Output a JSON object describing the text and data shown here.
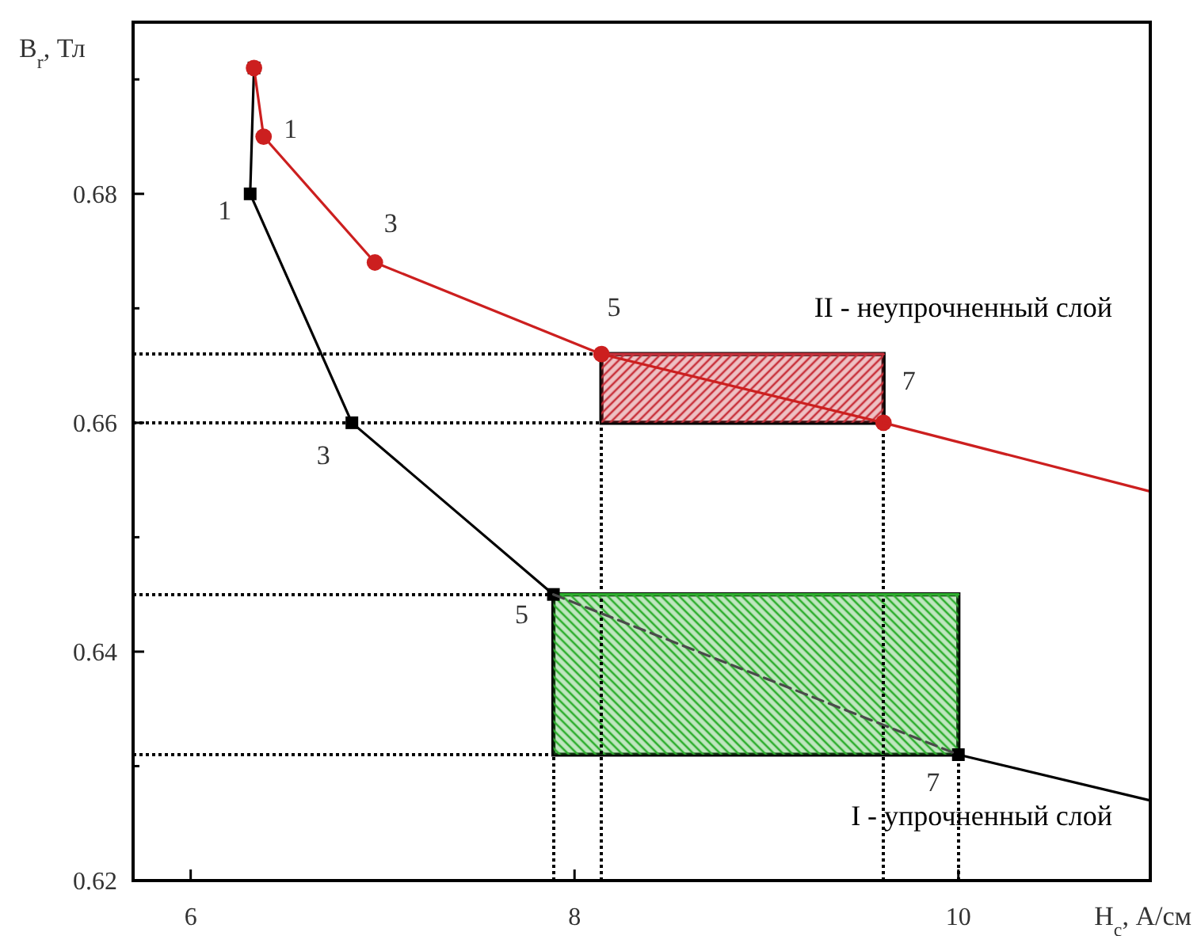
{
  "chart_data": {
    "type": "line",
    "xlabel": "H$_{c}$, А/см",
    "ylabel": "B$_{r}$, Тл",
    "xlim": [
      5.7,
      11.0
    ],
    "ylim": [
      0.62,
      0.695
    ],
    "xticks": [
      6,
      8,
      10
    ],
    "yticks": [
      0.62,
      {
        "value": 0.63,
        "label": null
      },
      0.64,
      {
        "value": 0.65,
        "label": null
      },
      0.66,
      {
        "value": 0.67,
        "label": null
      },
      0.68,
      {
        "value": 0.69,
        "label": null
      }
    ],
    "series": [
      {
        "color": "#c8323c",
        "x": [
          8.14,
          9.61
        ],
        "values": [
          0.666,
          0.666
        ],
        "lower": [
          0.66,
          0.66
        ],
        "upper": [
          0.666,
          0.666
        ]
      },
      {
        "color": "#2fae2f",
        "x": [
          7.89,
          10.0
        ],
        "values": [
          0.645,
          0.645
        ],
        "lower": [
          0.631,
          0.631
        ],
        "upper": [
          0.645,
          0.645
        ]
      },
      {
        "name": "I - упрочненный слой",
        "color": "#000000",
        "marker": "square",
        "x": [
          6.33,
          6.31,
          6.84,
          7.89,
          null,
          10.0
        ],
        "values": [
          0.691,
          0.68,
          0.66,
          0.645,
          null,
          0.631
        ]
      },
      {
        "color": "#4a4a4a",
        "line_style": "dashed",
        "x": [
          7.89,
          10.0
        ],
        "values": [
          0.645,
          0.631
        ]
      },
      {
        "color": "#000000",
        "x": [
          10.0,
          11.0
        ],
        "values": [
          0.631,
          0.627
        ]
      },
      {
        "name": "II - неупрочненный слой",
        "color": "#cc1f1f",
        "marker": "circle",
        "x": [
          6.33,
          6.38,
          6.96,
          8.14,
          9.61
        ],
        "values": [
          0.691,
          0.685,
          0.674,
          0.666,
          0.66
        ]
      },
      {
        "color": "#cc1f1f",
        "x": [
          9.61,
          11.0
        ],
        "values": [
          0.66,
          0.654
        ]
      }
    ],
    "ref_lines": [
      {
        "axis": "y",
        "value": 0.666,
        "color": "#000000",
        "line_style": "dotted"
      },
      {
        "axis": "y",
        "value": 0.66,
        "color": "#000000",
        "line_style": "dotted"
      },
      {
        "axis": "y",
        "value": 0.645,
        "color": "#000000",
        "line_style": "dotted"
      },
      {
        "axis": "y",
        "value": 0.631,
        "color": "#000000",
        "line_style": "dotted"
      },
      {
        "axis": "x",
        "value": 7.89,
        "color": "#000000",
        "line_style": "dotted"
      },
      {
        "axis": "x",
        "value": 8.14,
        "color": "#000000",
        "line_style": "dotted"
      },
      {
        "axis": "x",
        "value": 9.61,
        "color": "#000000",
        "line_style": "dotted"
      },
      {
        "axis": "x",
        "value": 10.0,
        "color": "#000000",
        "line_style": "dotted"
      }
    ],
    "annotations": [
      {
        "text": "1",
        "x": 6.38,
        "y": 0.685
      },
      {
        "text": "3",
        "x": 6.96,
        "y": 0.674
      },
      {
        "text": "5",
        "x": 8.14,
        "y": 0.666
      },
      {
        "text": "7",
        "x": 9.61,
        "y": 0.66
      },
      {
        "text": "1",
        "x": 6.31,
        "y": 0.68
      },
      {
        "text": "3",
        "x": 6.84,
        "y": 0.66
      },
      {
        "text": "5",
        "x": 7.89,
        "y": 0.645
      },
      {
        "text": "7",
        "x": 10.0,
        "y": 0.631
      }
    ]
  }
}
